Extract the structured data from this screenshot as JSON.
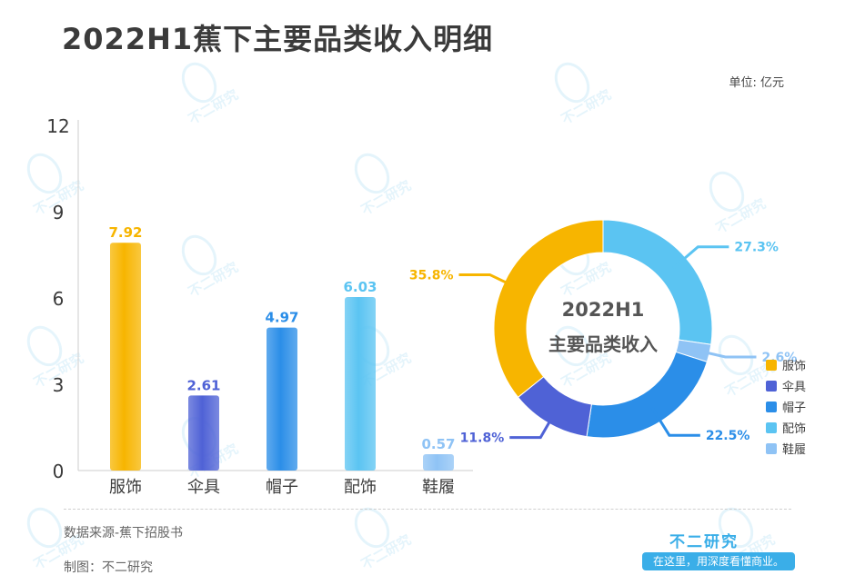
{
  "header": {
    "title": "2022H1蕉下主要品类收入明细",
    "unit": "单位: 亿元"
  },
  "footer": {
    "source": "数据来源-蕉下招股书",
    "maker": "制图：不二研究",
    "brand": "不二研究",
    "slogan": "在这里，用深度看懂商业。"
  },
  "watermark_text": "不二研究",
  "chart_data": [
    {
      "type": "bar",
      "categories": [
        "服饰",
        "伞具",
        "帽子",
        "配饰",
        "鞋履"
      ],
      "values": [
        7.92,
        2.61,
        4.97,
        6.03,
        0.57
      ],
      "ylim": [
        0,
        12
      ],
      "yticks": [
        0,
        3,
        6,
        9,
        12
      ],
      "colors": [
        "#f7b500",
        "#4f62d6",
        "#2b8ee8",
        "#5bc4f2",
        "#8fc3f5"
      ],
      "grid": false
    },
    {
      "type": "pie",
      "center_title": "2022H1",
      "center_subtitle": "主要品类收入",
      "labels": [
        "服饰",
        "伞具",
        "帽子",
        "配饰",
        "鞋履"
      ],
      "percent_labels": [
        "35.8%",
        "11.8%",
        "22.5%",
        "27.3%",
        "2.6%"
      ],
      "values": [
        35.8,
        11.8,
        22.5,
        27.3,
        2.6
      ],
      "colors": [
        "#f7b500",
        "#4f62d6",
        "#2b8ee8",
        "#5bc4f2",
        "#8fc3f5"
      ],
      "legend_position": "right"
    }
  ]
}
